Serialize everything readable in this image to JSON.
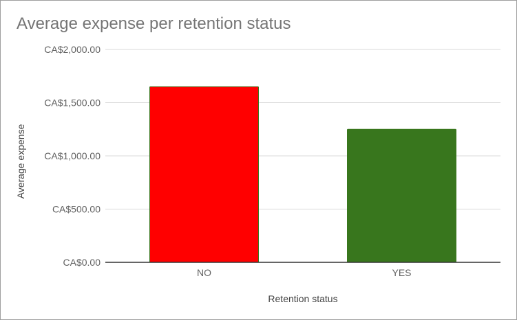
{
  "chart_data": {
    "type": "bar",
    "title": "Average expense per retention status",
    "xlabel": "Retention status",
    "ylabel": "Average expense",
    "categories": [
      "NO",
      "YES"
    ],
    "values": [
      1650,
      1250
    ],
    "bar_colors": [
      "#ff0000",
      "#38761d"
    ],
    "ylim": [
      0,
      2000
    ],
    "yticks": [
      0,
      500,
      1000,
      1500,
      2000
    ],
    "ytick_labels": [
      "CA$0.00",
      "CA$500.00",
      "CA$1,000.00",
      "CA$1,500.00",
      "CA$2,000.00"
    ],
    "grid": true,
    "legend": "none",
    "colors": {
      "gridline": "#d9d9d9",
      "baseline": "#333333",
      "title": "#757575",
      "ticks": "#616161"
    }
  }
}
